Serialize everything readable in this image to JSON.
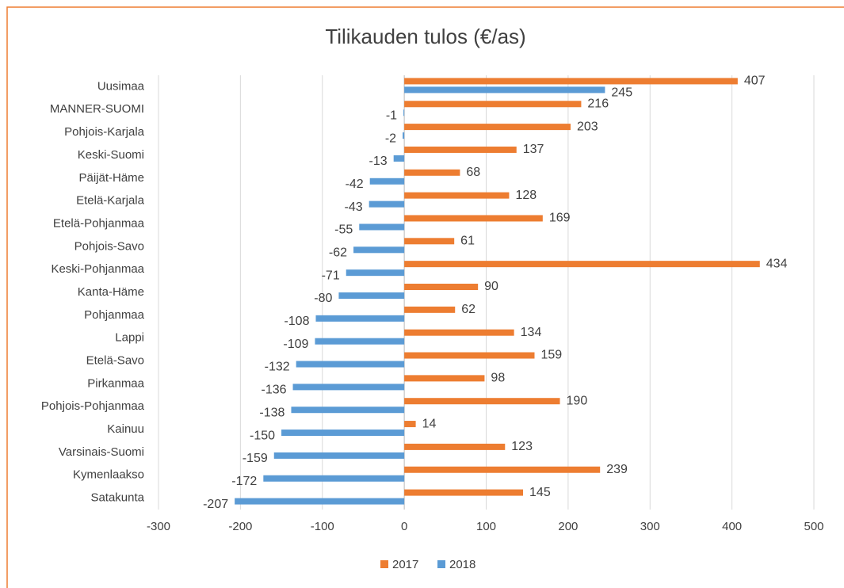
{
  "chart_data": {
    "type": "bar",
    "orientation": "horizontal",
    "title": "Tilikauden tulos (€/as)",
    "categories": [
      "Uusimaa",
      "MANNER-SUOMI",
      "Pohjois-Karjala",
      "Keski-Suomi",
      "Päijät-Häme",
      "Etelä-Karjala",
      "Etelä-Pohjanmaa",
      "Pohjois-Savo",
      "Keski-Pohjanmaa",
      "Kanta-Häme",
      "Pohjanmaa",
      "Lappi",
      "Etelä-Savo",
      "Pirkanmaa",
      "Pohjois-Pohjanmaa",
      "Kainuu",
      "Varsinais-Suomi",
      "Kymenlaakso",
      "Satakunta"
    ],
    "series": [
      {
        "name": "2017",
        "color": "#ed7d31",
        "values": [
          407,
          216,
          203,
          137,
          68,
          128,
          169,
          61,
          434,
          90,
          62,
          134,
          159,
          98,
          190,
          14,
          123,
          239,
          145
        ]
      },
      {
        "name": "2018",
        "color": "#5b9bd5",
        "values": [
          245,
          -1,
          -2,
          -13,
          -42,
          -43,
          -55,
          -62,
          -71,
          -80,
          -108,
          -109,
          -132,
          -136,
          -138,
          -150,
          -159,
          -172,
          -207
        ]
      }
    ],
    "xlim": [
      -300,
      500
    ],
    "xticks": [
      -300,
      -200,
      -100,
      0,
      100,
      200,
      300,
      400,
      500
    ],
    "grid": true,
    "legend": "bottom"
  }
}
